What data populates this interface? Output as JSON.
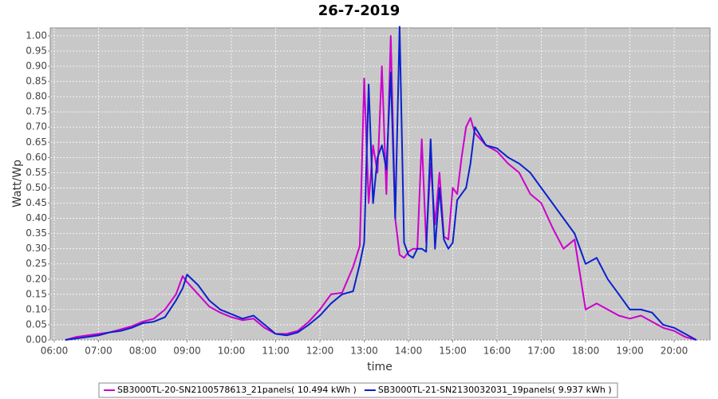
{
  "chart_data": {
    "type": "line",
    "title": "26-7-2019",
    "xlabel": "time",
    "ylabel": "Watt/Wp",
    "x": [
      6.25,
      6.5,
      6.75,
      7.0,
      7.25,
      7.5,
      7.75,
      8.0,
      8.25,
      8.5,
      8.75,
      8.9,
      9.0,
      9.25,
      9.5,
      9.75,
      10.0,
      10.25,
      10.5,
      10.75,
      11.0,
      11.25,
      11.5,
      11.75,
      12.0,
      12.25,
      12.5,
      12.75,
      12.9,
      13.0,
      13.1,
      13.2,
      13.3,
      13.4,
      13.5,
      13.6,
      13.7,
      13.8,
      13.9,
      14.0,
      14.1,
      14.2,
      14.3,
      14.4,
      14.5,
      14.6,
      14.7,
      14.8,
      14.9,
      15.0,
      15.1,
      15.2,
      15.3,
      15.4,
      15.5,
      15.75,
      16.0,
      16.25,
      16.5,
      16.75,
      17.0,
      17.25,
      17.5,
      17.75,
      18.0,
      18.25,
      18.5,
      18.75,
      19.0,
      19.25,
      19.5,
      19.75,
      20.0,
      20.25,
      20.5
    ],
    "series": [
      {
        "name": "SB3000TL-20-SN2100578613_21panels( 10.494 kWh )",
        "color": "#cc00cc",
        "values": [
          0,
          0.01,
          0.015,
          0.02,
          0.025,
          0.035,
          0.045,
          0.06,
          0.07,
          0.1,
          0.15,
          0.21,
          0.19,
          0.15,
          0.11,
          0.09,
          0.075,
          0.065,
          0.07,
          0.04,
          0.02,
          0.02,
          0.03,
          0.06,
          0.1,
          0.15,
          0.155,
          0.24,
          0.31,
          0.86,
          0.45,
          0.64,
          0.55,
          0.9,
          0.48,
          1.0,
          0.4,
          0.28,
          0.27,
          0.29,
          0.3,
          0.3,
          0.66,
          0.32,
          0.58,
          0.38,
          0.55,
          0.34,
          0.33,
          0.5,
          0.48,
          0.6,
          0.7,
          0.73,
          0.68,
          0.64,
          0.62,
          0.58,
          0.55,
          0.48,
          0.45,
          0.37,
          0.3,
          0.33,
          0.1,
          0.12,
          0.1,
          0.08,
          0.07,
          0.08,
          0.06,
          0.04,
          0.03,
          0.01,
          0
        ]
      },
      {
        "name": "SB3000TL-21-SN2130032031_19panels( 9.937 kWh )",
        "color": "#0a22cc",
        "values": [
          0,
          0.005,
          0.01,
          0.015,
          0.025,
          0.03,
          0.04,
          0.055,
          0.06,
          0.075,
          0.13,
          0.17,
          0.215,
          0.18,
          0.13,
          0.1,
          0.085,
          0.07,
          0.08,
          0.05,
          0.02,
          0.015,
          0.025,
          0.05,
          0.08,
          0.12,
          0.15,
          0.16,
          0.25,
          0.32,
          0.84,
          0.45,
          0.6,
          0.64,
          0.56,
          0.88,
          0.4,
          1.03,
          0.32,
          0.28,
          0.27,
          0.3,
          0.3,
          0.29,
          0.66,
          0.3,
          0.5,
          0.33,
          0.3,
          0.32,
          0.46,
          0.48,
          0.5,
          0.58,
          0.7,
          0.64,
          0.63,
          0.6,
          0.58,
          0.55,
          0.5,
          0.45,
          0.4,
          0.35,
          0.25,
          0.27,
          0.2,
          0.15,
          0.1,
          0.1,
          0.09,
          0.05,
          0.04,
          0.02,
          0
        ]
      }
    ],
    "xlim": [
      5.91,
      20.81
    ],
    "xticks": [
      {
        "value": 6,
        "label": "06:00"
      },
      {
        "value": 7,
        "label": "07:00"
      },
      {
        "value": 8,
        "label": "08:00"
      },
      {
        "value": 9,
        "label": "09:00"
      },
      {
        "value": 10,
        "label": "10:00"
      },
      {
        "value": 11,
        "label": "11:00"
      },
      {
        "value": 12,
        "label": "12:00"
      },
      {
        "value": 13,
        "label": "13:00"
      },
      {
        "value": 14,
        "label": "14:00"
      },
      {
        "value": 15,
        "label": "15:00"
      },
      {
        "value": 16,
        "label": "16:00"
      },
      {
        "value": 17,
        "label": "17:00"
      },
      {
        "value": 18,
        "label": "18:00"
      },
      {
        "value": 19,
        "label": "19:00"
      },
      {
        "value": 20,
        "label": "20:00"
      }
    ],
    "ylim": [
      0,
      1.026
    ],
    "yticks": [
      {
        "value": 0,
        "label": "0.00"
      },
      {
        "value": 0.05,
        "label": "0.05"
      },
      {
        "value": 0.1,
        "label": "0.10"
      },
      {
        "value": 0.15,
        "label": "0.15"
      },
      {
        "value": 0.2,
        "label": "0.20"
      },
      {
        "value": 0.25,
        "label": "0.25"
      },
      {
        "value": 0.3,
        "label": "0.30"
      },
      {
        "value": 0.35,
        "label": "0.35"
      },
      {
        "value": 0.4,
        "label": "0.40"
      },
      {
        "value": 0.45,
        "label": "0.45"
      },
      {
        "value": 0.5,
        "label": "0.50"
      },
      {
        "value": 0.55,
        "label": "0.55"
      },
      {
        "value": 0.6,
        "label": "0.60"
      },
      {
        "value": 0.65,
        "label": "0.65"
      },
      {
        "value": 0.7,
        "label": "0.70"
      },
      {
        "value": 0.75,
        "label": "0.75"
      },
      {
        "value": 0.8,
        "label": "0.80"
      },
      {
        "value": 0.85,
        "label": "0.85"
      },
      {
        "value": 0.9,
        "label": "0.90"
      },
      {
        "value": 0.95,
        "label": "0.95"
      },
      {
        "value": 1.0,
        "label": "1.00"
      }
    ],
    "grid": true,
    "legend": "bottom"
  }
}
